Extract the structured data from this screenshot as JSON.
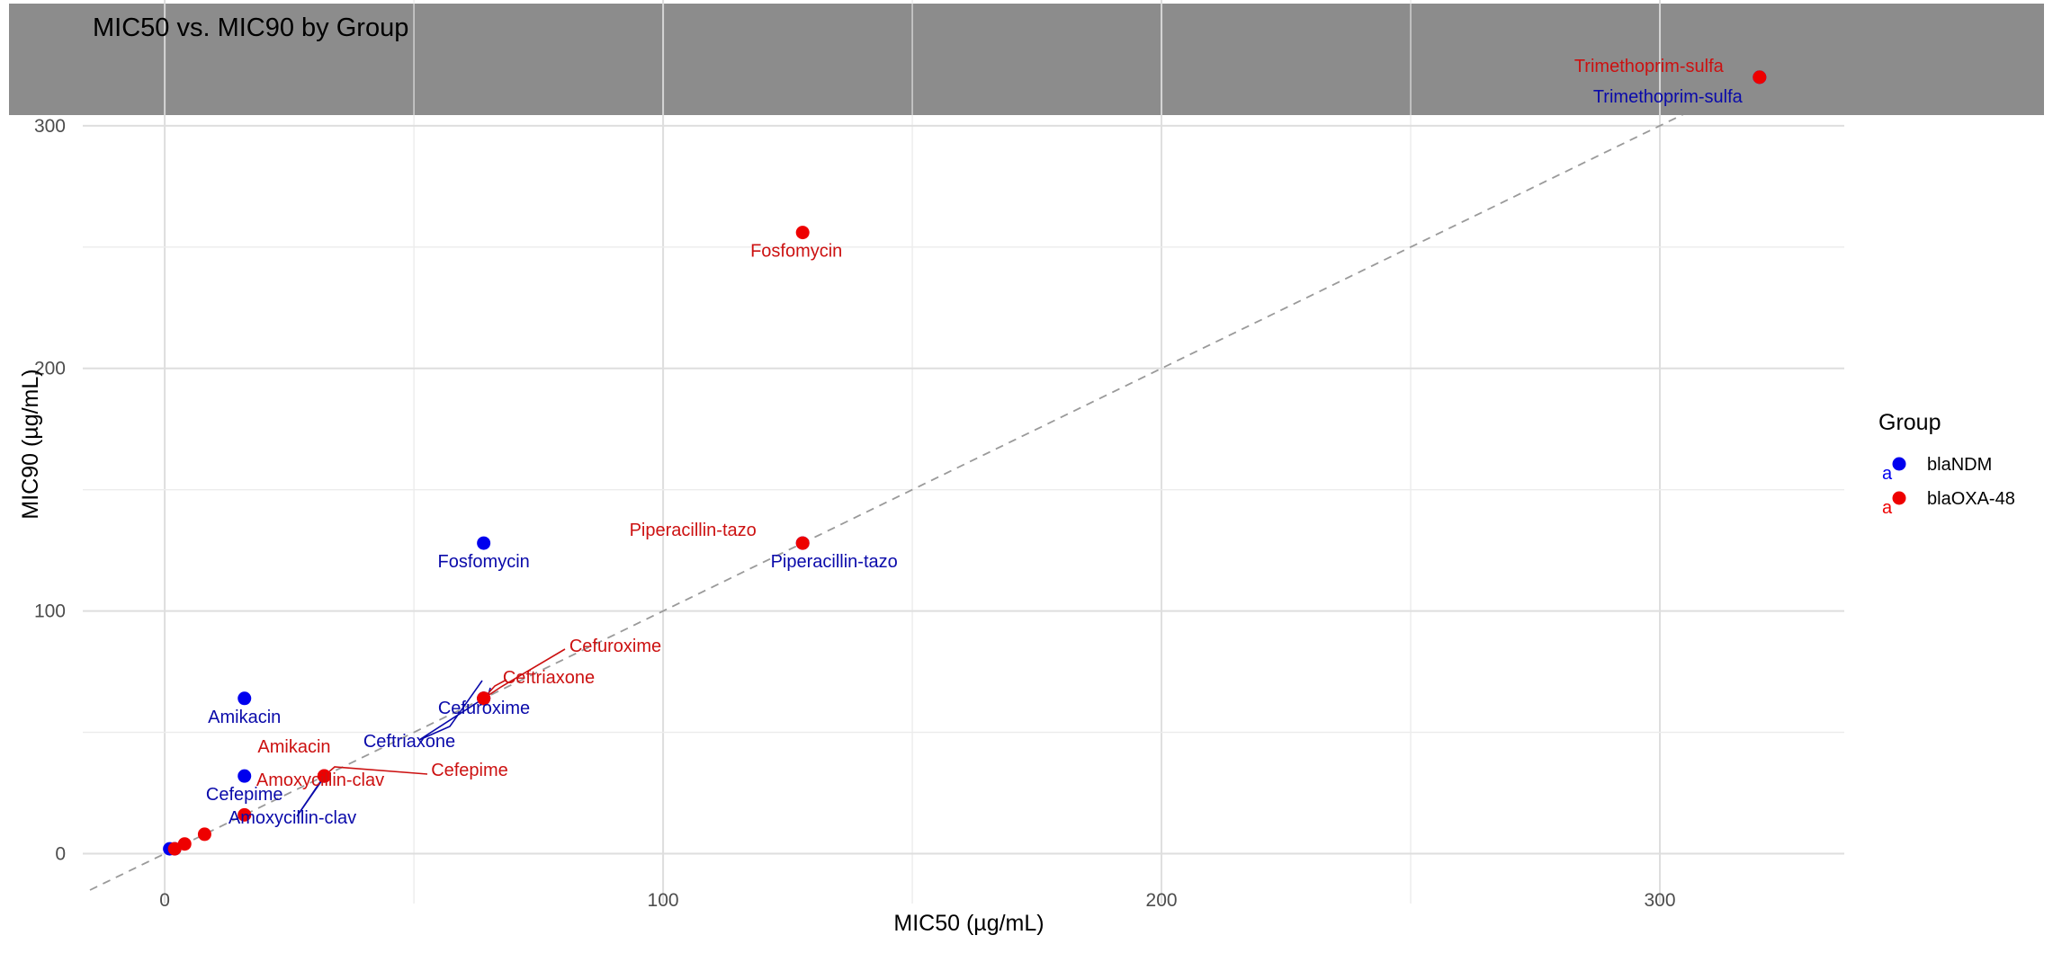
{
  "chart_data": {
    "type": "scatter",
    "title": "MIC50 vs. MIC90 by Group",
    "xlabel": "MIC50 (µg/mL)",
    "ylabel": "MIC90 (µg/mL)",
    "xlim": [
      -15,
      337
    ],
    "ylim": [
      -15,
      337
    ],
    "x_ticks": [
      0,
      100,
      200,
      300
    ],
    "y_ticks": [
      0,
      100,
      200,
      300
    ],
    "grid": true,
    "reference_line": "y = x (dashed)",
    "title_band_color": "#8c8c8c",
    "legend": {
      "title": "Group",
      "position": "right",
      "key_letter": "a",
      "entries": [
        {
          "name": "blaNDM",
          "color": "#0000ee"
        },
        {
          "name": "blaOXA-48",
          "color": "#ee0000"
        }
      ]
    },
    "series": [
      {
        "name": "blaNDM",
        "color": "#0000ee",
        "label_color": "#0a0aaa",
        "points": [
          {
            "x": 1,
            "y": 2
          },
          {
            "x": 2,
            "y": 2
          },
          {
            "x": 16,
            "y": 32,
            "label": "Cefepime"
          },
          {
            "x": 16,
            "y": 64,
            "label": "Amikacin"
          },
          {
            "x": 32,
            "y": 32,
            "label": "Amoxycillin-clav"
          },
          {
            "x": 64,
            "y": 64,
            "label": "Ceftriaxone"
          },
          {
            "x": 64,
            "y": 64,
            "label": "Cefuroxime"
          },
          {
            "x": 64,
            "y": 128,
            "label": "Fosfomycin"
          },
          {
            "x": 128,
            "y": 128,
            "label": "Piperacillin-tazo"
          },
          {
            "x": 320,
            "y": 320,
            "label": "Trimethoprim-sulfa"
          }
        ]
      },
      {
        "name": "blaOXA-48",
        "color": "#ee0000",
        "label_color": "#cc1111",
        "points": [
          {
            "x": 2,
            "y": 2
          },
          {
            "x": 4,
            "y": 4
          },
          {
            "x": 8,
            "y": 8
          },
          {
            "x": 16,
            "y": 16
          },
          {
            "x": 32,
            "y": 32,
            "label": "Amikacin"
          },
          {
            "x": 32,
            "y": 32,
            "label": "Amoxycillin-clav"
          },
          {
            "x": 32,
            "y": 32,
            "label": "Cefepime"
          },
          {
            "x": 64,
            "y": 64,
            "label": "Ceftriaxone"
          },
          {
            "x": 64,
            "y": 64,
            "label": "Cefuroxime"
          },
          {
            "x": 128,
            "y": 128,
            "label": "Piperacillin-tazo"
          },
          {
            "x": 128,
            "y": 256,
            "label": "Fosfomycin"
          },
          {
            "x": 320,
            "y": 320,
            "label": "Trimethoprim-sulfa"
          }
        ]
      }
    ]
  }
}
